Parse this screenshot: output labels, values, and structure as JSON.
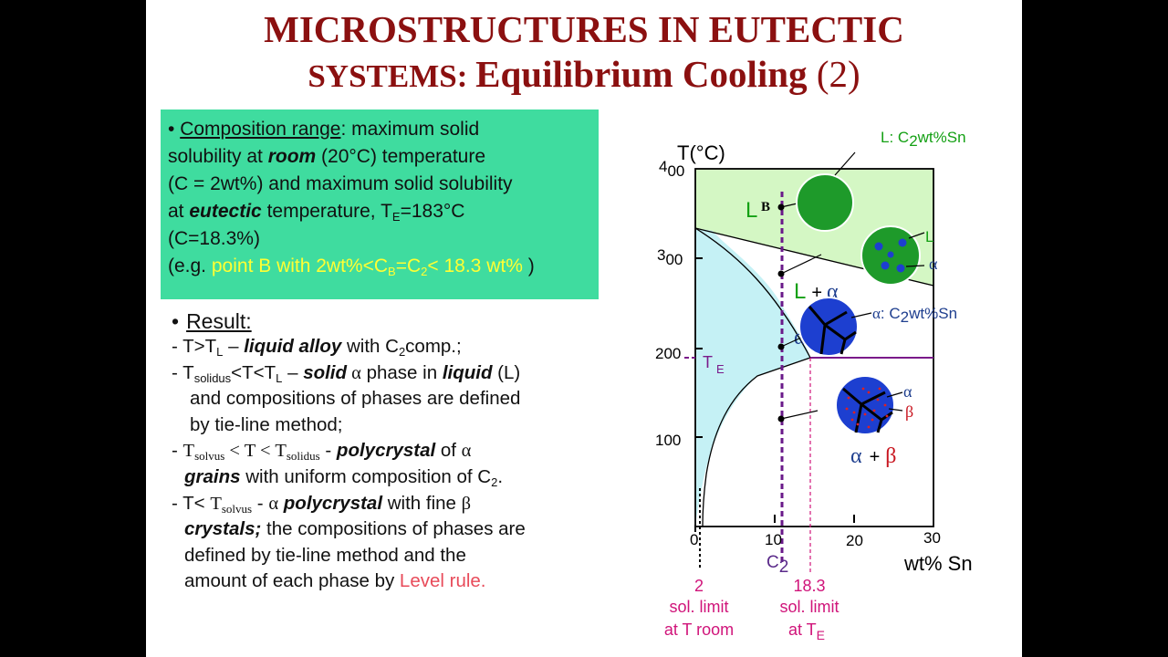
{
  "title": {
    "line1": "MICROSTRUCTURES IN EUTECTIC",
    "line2a": "SYSTEMS",
    "line2b": ": ",
    "line2c": "Equilibrium Cooling",
    "line2d": " (2)"
  },
  "green_box": {
    "bullet": "•",
    "heading": "Composition range",
    "l1_rest": ": maximum solid",
    "l2a": "solubility at ",
    "l2b": "room",
    "l2c": " (20°C) temperature",
    "l3": "(C = 2wt%) and maximum solid solubility",
    "l4a": "at ",
    "l4b": "eutectic",
    "l4c": " temperature, T",
    "l4sub": "E",
    "l4d": "=183°C",
    "l5": "(C=18.3%)",
    "l6a": "(e.g. ",
    "l6b": "point B with 2wt%<C",
    "l6sub": "B",
    "l6c": "=C",
    "l6sub2": "2",
    "l6d": "< 18.3 wt%",
    "l6e": " )"
  },
  "result": {
    "bullet": "•",
    "heading": "Result:",
    "r1a": "- T>T",
    "r1sub": "L",
    "r1b": " – ",
    "r1c": "liquid alloy",
    "r1d": " with C",
    "r1sub2": "2",
    "r1e": "comp.;",
    "r2a": "- T",
    "r2sub": "solidus",
    "r2b": "<T<T",
    "r2sub2": "L",
    "r2c": " – ",
    "r2d": "solid",
    "r2e": " α",
    "r2f": " phase in ",
    "r2g": "liquid",
    "r2h": " (L)",
    "r3": "and compositions of phases are defined",
    "r4": "by tie-line method;",
    "r5a": "- ",
    "r5b": "T",
    "r5sub": "solvus",
    "r5c": " < T < T",
    "r5sub2": "solidus",
    "r5d": " - ",
    "r5e": "polycrystal",
    "r5f": " of ",
    "r5g": "α",
    "r6a": "grains",
    "r6b": " with uniform composition of C",
    "r6sub": "2",
    "r6c": ".",
    "r7a": "- T< ",
    "r7b": "T",
    "r7sub": "solvus",
    "r7c": " - ",
    "r7d": "α",
    "r7e": " polycrystal",
    "r7f": " with fine ",
    "r7g": "β",
    "r8a": "crystals;",
    "r8b": " the compositions of phases are",
    "r9": "defined by  tie-line method and the",
    "r10a": "amount of each phase by ",
    "r10b": "Level rule."
  },
  "diagram": {
    "y_axis_label": "T(°C)",
    "x_axis_label": "wt% Sn",
    "y_ticks": [
      {
        "value": 400,
        "label_a": "4",
        "label_b": "00"
      },
      {
        "value": 300,
        "label_a": "3",
        "label_b": "00"
      },
      {
        "value": 200,
        "label_a": "200",
        "label_b": ""
      },
      {
        "value": 100,
        "label_a": "100",
        "label_b": ""
      }
    ],
    "x_ticks": [
      {
        "value": 0,
        "label": "0"
      },
      {
        "value": 10,
        "label": "10"
      },
      {
        "value": 20,
        "label": "20"
      },
      {
        "value": 30,
        "label": "30"
      }
    ],
    "te_label": "T",
    "te_sub": "E",
    "region_L": "L",
    "region_L_alpha_a": "L",
    "region_L_alpha_b": "+",
    "region_L_alpha_c": "α",
    "region_alpha": "α",
    "region_alpha_beta_a": "α",
    "region_alpha_beta_b": "+",
    "region_alpha_beta_c": "β",
    "point_B": "B",
    "micro_labels": {
      "m1_a": "L:  C",
      "m1_sub": "2",
      "m1_b": "wt%Sn",
      "m2_L": "L",
      "m2_alpha": "α",
      "m3_a": "α",
      "m3_b": ": C",
      "m3_sub": "2",
      "m3_c": "wt%Sn",
      "m4_alpha": "α",
      "m4_beta": "β"
    },
    "c2_label": "C",
    "c2_sub": "2",
    "annot_2_line1": "2",
    "annot_2_line2": "sol. limit",
    "annot_2_line3": "at T room",
    "annot_18_line1": "18.3",
    "annot_18_line2": "sol. limit",
    "annot_18_line3": "at T",
    "annot_18_sub": "E",
    "colors": {
      "liquid_region": "#d4f7c4",
      "alpha_region": "#c5f1f5",
      "grain_green": "#1e9a2a",
      "grain_blue": "#1d3fd0",
      "label_green": "#14a014",
      "label_blue": "#1f3f8f",
      "label_red": "#c8141e",
      "purple": "#7a1a8a",
      "magenta": "#d0147a"
    }
  }
}
